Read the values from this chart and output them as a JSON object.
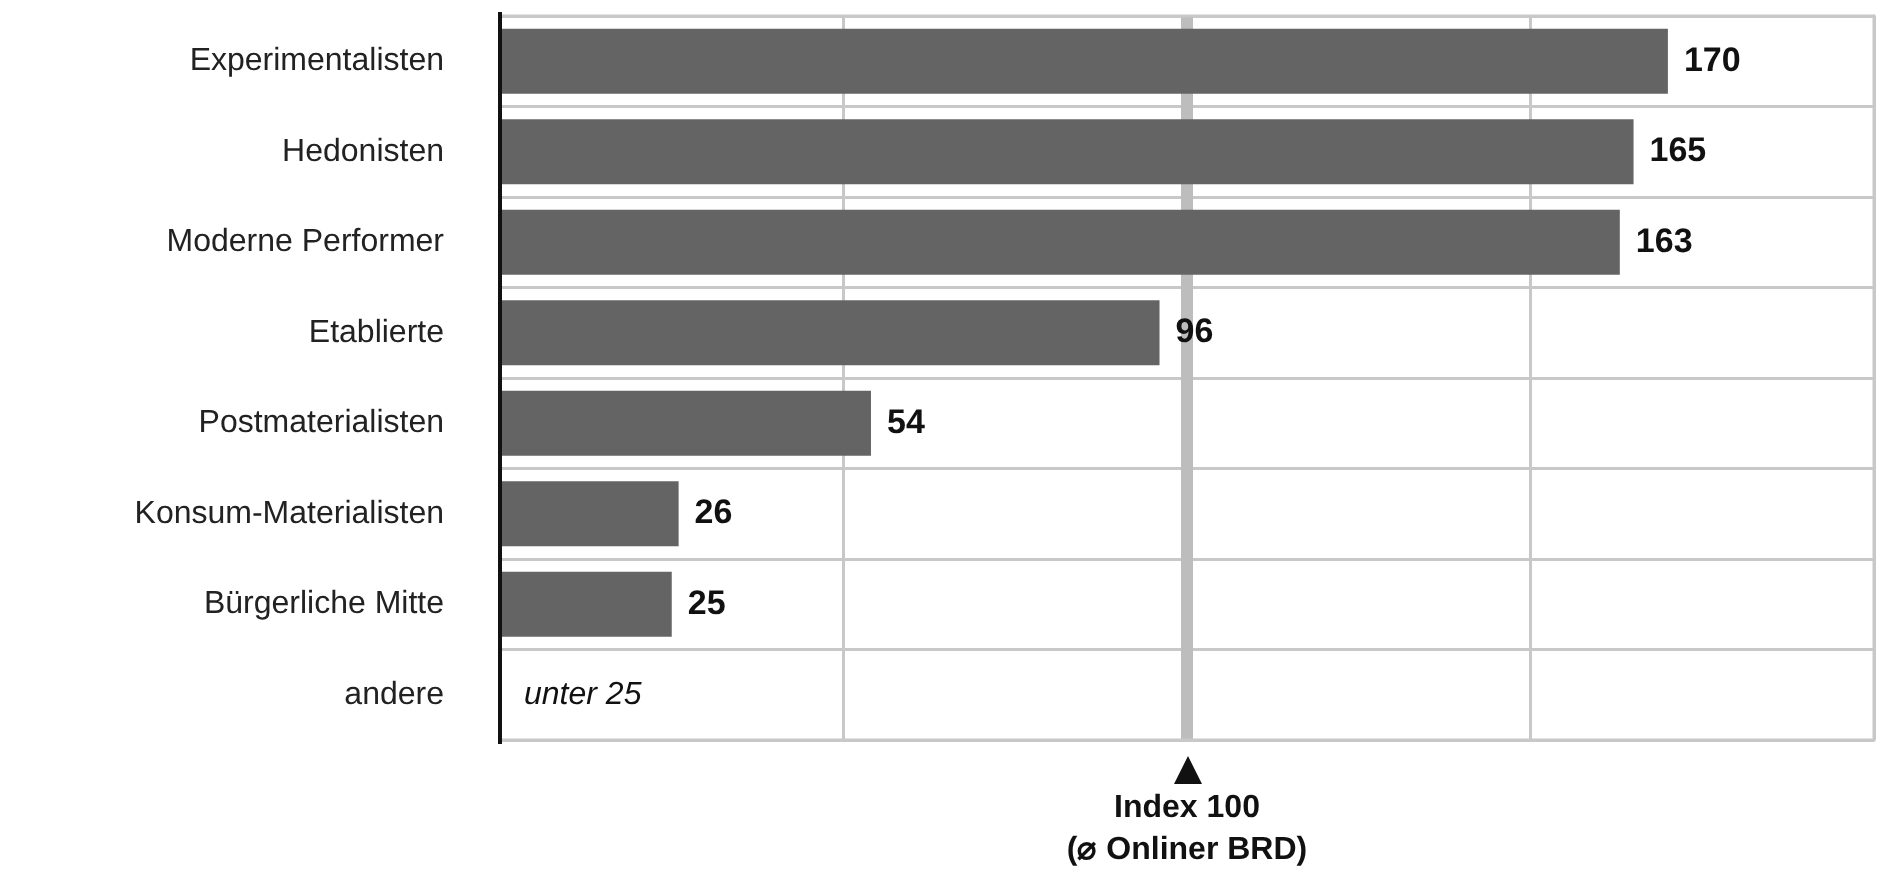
{
  "chart_data": {
    "type": "bar",
    "orientation": "horizontal",
    "categories": [
      "Experimentalisten",
      "Hedonisten",
      "Moderne Performer",
      "Etablierte",
      "Postmaterialisten",
      "Konsum-Materialisten",
      "Bürgerliche Mitte",
      "andere"
    ],
    "values": [
      170,
      165,
      163,
      96,
      54,
      26,
      25,
      null
    ],
    "value_labels": [
      "170",
      "165",
      "163",
      "96",
      "54",
      "26",
      "25",
      "unter 25"
    ],
    "color": "#646464",
    "xlim": [
      0,
      200
    ],
    "xticks": [
      {
        "value": 0,
        "label": null
      },
      {
        "value": 50,
        "label": null
      },
      {
        "value": 100,
        "label": null
      },
      {
        "value": 150,
        "label": null
      },
      {
        "value": 200,
        "label": null
      }
    ],
    "tick_labels": "y",
    "grid": true,
    "legend": false,
    "ref_lines": [
      {
        "axis": "x",
        "value": 100,
        "label": "Index 100\n(⌀ Onliner BRD)",
        "color": "#bdbdbd"
      }
    ]
  }
}
